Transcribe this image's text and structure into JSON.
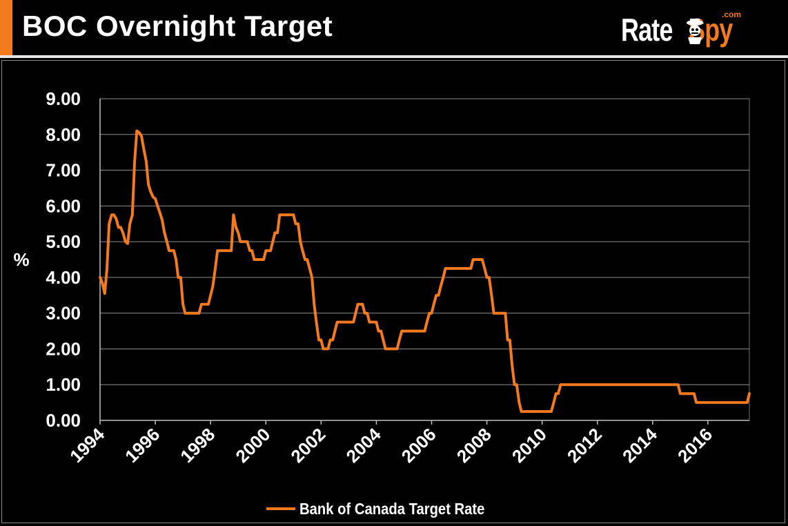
{
  "header": {
    "title": "BOC Overnight Target",
    "accent_color": "#f47a20",
    "logo": {
      "word1": "Rate",
      "word2": "Spy",
      "suffix": ".com",
      "icon": "spy-mascot-icon"
    }
  },
  "chart_data": {
    "type": "line",
    "title": "",
    "xlabel": "",
    "ylabel": "%",
    "xlim": [
      1994,
      2017.5
    ],
    "ylim": [
      0,
      9
    ],
    "x_ticks": [
      "1994",
      "1996",
      "1998",
      "2000",
      "2002",
      "2004",
      "2006",
      "2008",
      "2010",
      "2012",
      "2014",
      "2016"
    ],
    "y_ticks": [
      "0.00",
      "1.00",
      "2.00",
      "3.00",
      "4.00",
      "5.00",
      "6.00",
      "7.00",
      "8.00",
      "9.00"
    ],
    "grid": "horizontal",
    "legend_position": "bottom",
    "line_color": "#f47a20",
    "series": [
      {
        "name": "Bank of Canada Target Rate",
        "points": [
          [
            1994.0,
            4.0
          ],
          [
            1994.08,
            3.85
          ],
          [
            1994.17,
            3.55
          ],
          [
            1994.25,
            4.25
          ],
          [
            1994.33,
            5.5
          ],
          [
            1994.42,
            5.75
          ],
          [
            1994.5,
            5.75
          ],
          [
            1994.58,
            5.65
          ],
          [
            1994.67,
            5.4
          ],
          [
            1994.75,
            5.4
          ],
          [
            1994.83,
            5.25
          ],
          [
            1994.92,
            5.0
          ],
          [
            1995.0,
            4.95
          ],
          [
            1995.08,
            5.5
          ],
          [
            1995.17,
            5.75
          ],
          [
            1995.25,
            7.25
          ],
          [
            1995.33,
            8.1
          ],
          [
            1995.42,
            8.05
          ],
          [
            1995.5,
            7.95
          ],
          [
            1995.58,
            7.6
          ],
          [
            1995.67,
            7.25
          ],
          [
            1995.75,
            6.6
          ],
          [
            1995.83,
            6.4
          ],
          [
            1995.92,
            6.25
          ],
          [
            1996.0,
            6.2
          ],
          [
            1996.08,
            6.0
          ],
          [
            1996.17,
            5.8
          ],
          [
            1996.25,
            5.6
          ],
          [
            1996.33,
            5.25
          ],
          [
            1996.42,
            5.0
          ],
          [
            1996.5,
            4.75
          ],
          [
            1996.58,
            4.75
          ],
          [
            1996.67,
            4.75
          ],
          [
            1996.75,
            4.5
          ],
          [
            1996.83,
            4.0
          ],
          [
            1996.92,
            4.0
          ],
          [
            1997.0,
            3.25
          ],
          [
            1997.08,
            3.0
          ],
          [
            1997.25,
            3.0
          ],
          [
            1997.5,
            3.0
          ],
          [
            1997.58,
            3.0
          ],
          [
            1997.67,
            3.25
          ],
          [
            1997.83,
            3.25
          ],
          [
            1997.92,
            3.25
          ],
          [
            1998.0,
            3.5
          ],
          [
            1998.08,
            3.75
          ],
          [
            1998.17,
            4.25
          ],
          [
            1998.25,
            4.75
          ],
          [
            1998.5,
            4.75
          ],
          [
            1998.67,
            4.75
          ],
          [
            1998.75,
            4.75
          ],
          [
            1998.83,
            5.75
          ],
          [
            1998.92,
            5.4
          ],
          [
            1999.0,
            5.25
          ],
          [
            1999.08,
            5.0
          ],
          [
            1999.33,
            5.0
          ],
          [
            1999.42,
            4.75
          ],
          [
            1999.5,
            4.75
          ],
          [
            1999.58,
            4.5
          ],
          [
            1999.75,
            4.5
          ],
          [
            1999.92,
            4.5
          ],
          [
            2000.0,
            4.75
          ],
          [
            2000.17,
            4.75
          ],
          [
            2000.25,
            5.0
          ],
          [
            2000.33,
            5.25
          ],
          [
            2000.42,
            5.25
          ],
          [
            2000.5,
            5.75
          ],
          [
            2001.0,
            5.75
          ],
          [
            2001.08,
            5.5
          ],
          [
            2001.17,
            5.5
          ],
          [
            2001.25,
            5.0
          ],
          [
            2001.33,
            4.75
          ],
          [
            2001.42,
            4.5
          ],
          [
            2001.5,
            4.5
          ],
          [
            2001.67,
            4.0
          ],
          [
            2001.75,
            3.25
          ],
          [
            2001.83,
            2.75
          ],
          [
            2001.92,
            2.25
          ],
          [
            2002.0,
            2.25
          ],
          [
            2002.08,
            2.0
          ],
          [
            2002.25,
            2.0
          ],
          [
            2002.33,
            2.25
          ],
          [
            2002.42,
            2.25
          ],
          [
            2002.5,
            2.5
          ],
          [
            2002.58,
            2.75
          ],
          [
            2003.17,
            2.75
          ],
          [
            2003.25,
            3.0
          ],
          [
            2003.33,
            3.25
          ],
          [
            2003.5,
            3.25
          ],
          [
            2003.58,
            3.0
          ],
          [
            2003.67,
            3.0
          ],
          [
            2003.75,
            2.75
          ],
          [
            2004.0,
            2.75
          ],
          [
            2004.08,
            2.5
          ],
          [
            2004.17,
            2.5
          ],
          [
            2004.25,
            2.25
          ],
          [
            2004.33,
            2.0
          ],
          [
            2004.75,
            2.0
          ],
          [
            2004.83,
            2.25
          ],
          [
            2004.92,
            2.5
          ],
          [
            2005.75,
            2.5
          ],
          [
            2005.83,
            2.75
          ],
          [
            2005.92,
            3.0
          ],
          [
            2006.0,
            3.0
          ],
          [
            2006.08,
            3.25
          ],
          [
            2006.17,
            3.5
          ],
          [
            2006.25,
            3.5
          ],
          [
            2006.33,
            3.75
          ],
          [
            2006.42,
            4.0
          ],
          [
            2006.5,
            4.25
          ],
          [
            2007.42,
            4.25
          ],
          [
            2007.5,
            4.5
          ],
          [
            2007.83,
            4.5
          ],
          [
            2007.92,
            4.25
          ],
          [
            2008.0,
            4.0
          ],
          [
            2008.08,
            4.0
          ],
          [
            2008.17,
            3.5
          ],
          [
            2008.25,
            3.0
          ],
          [
            2008.67,
            3.0
          ],
          [
            2008.75,
            2.25
          ],
          [
            2008.83,
            2.25
          ],
          [
            2008.92,
            1.5
          ],
          [
            2009.0,
            1.0
          ],
          [
            2009.08,
            1.0
          ],
          [
            2009.17,
            0.5
          ],
          [
            2009.25,
            0.25
          ],
          [
            2010.33,
            0.25
          ],
          [
            2010.42,
            0.5
          ],
          [
            2010.5,
            0.75
          ],
          [
            2010.58,
            0.75
          ],
          [
            2010.67,
            1.0
          ],
          [
            2014.92,
            1.0
          ],
          [
            2015.0,
            0.75
          ],
          [
            2015.5,
            0.75
          ],
          [
            2015.58,
            0.5
          ],
          [
            2017.42,
            0.5
          ],
          [
            2017.5,
            0.75
          ]
        ]
      }
    ]
  }
}
